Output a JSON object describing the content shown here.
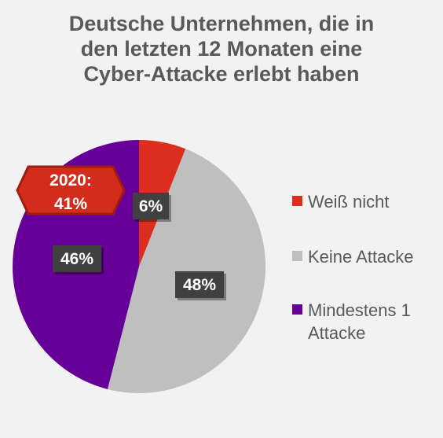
{
  "chart_data": {
    "type": "pie",
    "title": "Deutsche Unternehmen, die in den letzten 12 Monaten eine Cyber-Attacke erlebt haben",
    "slices": [
      {
        "label": "Weiß nicht",
        "value": 6,
        "display": "6%",
        "color": "#dc2e1f"
      },
      {
        "label": "Keine Attacke",
        "value": 48,
        "display": "48%",
        "color": "#bfbfbf"
      },
      {
        "label": "Mindestens 1 Attacke",
        "value": 46,
        "display": "46%",
        "color": "#660099"
      }
    ],
    "legend": {
      "position": "right",
      "items": [
        {
          "lines": [
            "Weiß nicht"
          ],
          "color": "#dc2e1f"
        },
        {
          "lines": [
            "Keine Attacke"
          ],
          "color": "#bfbfbf"
        },
        {
          "lines": [
            "Mindestens 1",
            "Attacke"
          ],
          "color": "#660099"
        }
      ]
    },
    "annotation": {
      "lines": [
        "2020:",
        "41%"
      ],
      "color": "#d22d1c",
      "border": "#a01b10"
    }
  }
}
